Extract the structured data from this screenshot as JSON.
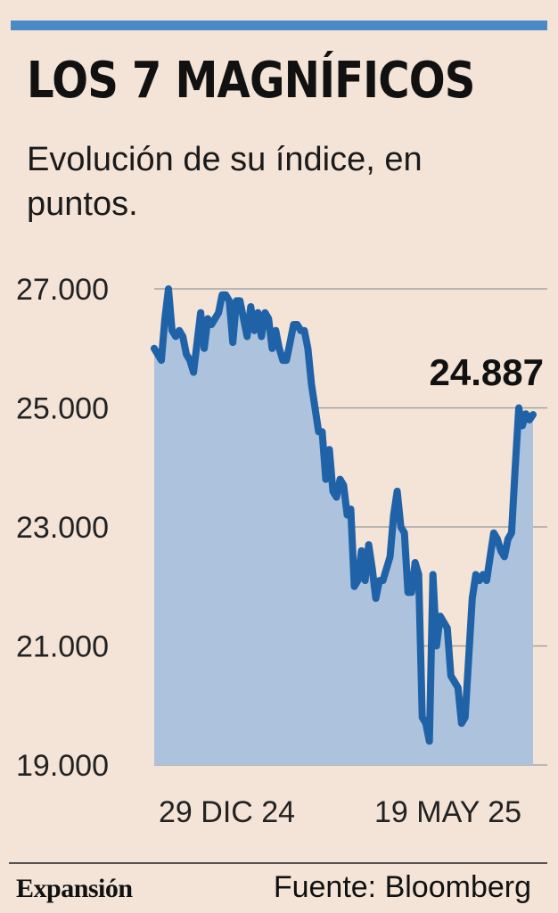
{
  "header": {
    "title": "LOS 7 MAGNÍFICOS",
    "subtitle": "Evolución de su índice, en puntos."
  },
  "footer": {
    "logo": "Expansión",
    "source": "Fuente: Bloomberg"
  },
  "colors": {
    "background": "#f4e4d7",
    "accent_bar": "#4a8ac6",
    "line": "#1f62a8",
    "area": "#adc3dd",
    "grid": "#999999"
  },
  "chart_data": {
    "type": "area",
    "title": "LOS 7 MAGNÍFICOS",
    "subtitle": "Evolución de su índice, en puntos.",
    "ylim": [
      19000,
      27000
    ],
    "yticks": [
      27000,
      25000,
      23000,
      21000,
      19000
    ],
    "ytick_labels": [
      "27.000",
      "25.000",
      "23.000",
      "21.000",
      "19.000"
    ],
    "xtick_labels": [
      "29 DIC 24",
      "19 MAY 25"
    ],
    "grid": true,
    "last_value_label": "24.887",
    "series": [
      {
        "values": [
          26000,
          25900,
          25800,
          26500,
          27000,
          26300,
          26200,
          26300,
          26200,
          25900,
          25800,
          25600,
          26100,
          26600,
          26000,
          26500,
          26400,
          26500,
          26600,
          26900,
          26900,
          26800,
          26100,
          26800,
          26800,
          26500,
          26200,
          26700,
          26300,
          26600,
          26200,
          26600,
          26500,
          26000,
          26300,
          26000,
          25800,
          25800,
          26100,
          26400,
          26400,
          26300,
          26300,
          26000,
          25400,
          25000,
          24600,
          24600,
          23800,
          24300,
          23600,
          23500,
          23800,
          23700,
          23200,
          23300,
          22000,
          22100,
          22600,
          22100,
          22700,
          22300,
          21800,
          22100,
          22100,
          22300,
          22500,
          23200,
          23600,
          23000,
          22900,
          21900,
          21900,
          22400,
          22200,
          19800,
          19700,
          19400,
          22200,
          21000,
          21500,
          21400,
          21300,
          20500,
          20400,
          20300,
          19700,
          19800,
          20800,
          21800,
          22200,
          22100,
          22200,
          22100,
          22500,
          22900,
          22800,
          22600,
          22500,
          22800,
          22900,
          24000,
          25000,
          24700,
          24900,
          24800,
          24887
        ]
      }
    ]
  }
}
